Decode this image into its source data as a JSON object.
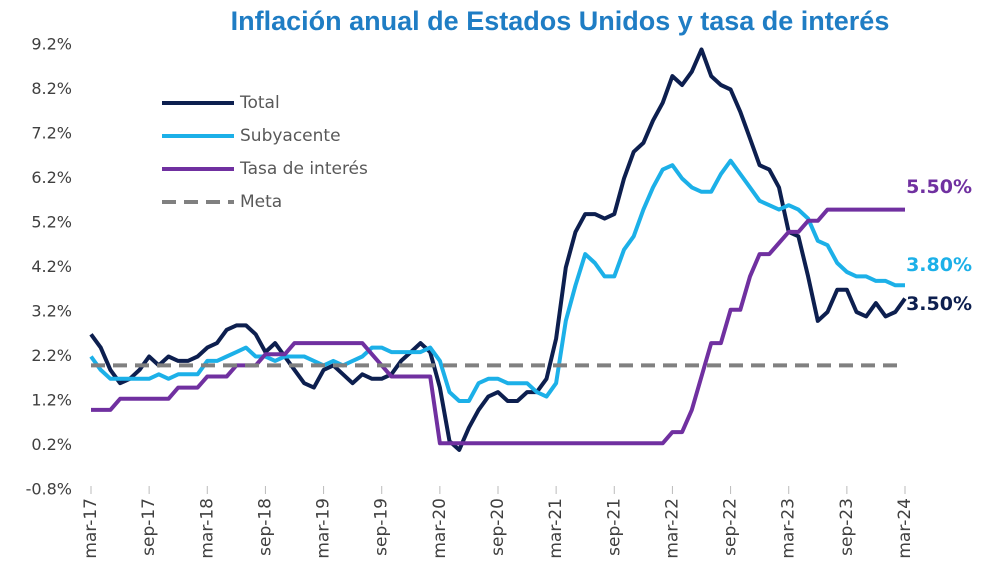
{
  "chart_data": {
    "type": "line",
    "title": "Inflación anual de Estados Unidos y tasa de interés",
    "categories": [
      "mar-17",
      null,
      null,
      null,
      null,
      null,
      "sep-17",
      null,
      null,
      null,
      null,
      null,
      "mar-18",
      null,
      null,
      null,
      null,
      null,
      "sep-18",
      null,
      null,
      null,
      null,
      null,
      "mar-19",
      null,
      null,
      null,
      null,
      null,
      "sep-19",
      null,
      null,
      null,
      null,
      null,
      "mar-20",
      null,
      null,
      null,
      null,
      null,
      "sep-20",
      null,
      null,
      null,
      null,
      null,
      "mar-21",
      null,
      null,
      null,
      null,
      null,
      "sep-21",
      null,
      null,
      null,
      null,
      null,
      "mar-22",
      null,
      null,
      null,
      null,
      null,
      "sep-22",
      null,
      null,
      null,
      null,
      null,
      "mar-23",
      null,
      null,
      null,
      null,
      null,
      "sep-23",
      null,
      null,
      null,
      null,
      null,
      "mar-24"
    ],
    "series": [
      {
        "name": "Total",
        "color": "#0d1f4f",
        "end_label": "3.50%",
        "values": [
          2.7,
          2.4,
          1.9,
          1.6,
          1.7,
          1.9,
          2.2,
          2.0,
          2.2,
          2.1,
          2.1,
          2.2,
          2.4,
          2.5,
          2.8,
          2.9,
          2.9,
          2.7,
          2.3,
          2.5,
          2.2,
          1.9,
          1.6,
          1.5,
          1.9,
          2.0,
          1.8,
          1.6,
          1.8,
          1.7,
          1.7,
          1.8,
          2.1,
          2.3,
          2.5,
          2.3,
          1.5,
          0.3,
          0.1,
          0.6,
          1.0,
          1.3,
          1.4,
          1.2,
          1.2,
          1.4,
          1.4,
          1.7,
          2.6,
          4.2,
          5.0,
          5.4,
          5.4,
          5.3,
          5.4,
          6.2,
          6.8,
          7.0,
          7.5,
          7.9,
          8.5,
          8.3,
          8.6,
          9.1,
          8.5,
          8.3,
          8.2,
          7.7,
          7.1,
          6.5,
          6.4,
          6.0,
          5.0,
          4.9,
          4.0,
          3.0,
          3.2,
          3.7,
          3.7,
          3.2,
          3.1,
          3.4,
          3.1,
          3.2,
          3.5
        ]
      },
      {
        "name": "Subyacente",
        "color": "#1cb0e8",
        "end_label": "3.80%",
        "values": [
          2.2,
          1.9,
          1.7,
          1.7,
          1.7,
          1.7,
          1.7,
          1.8,
          1.7,
          1.8,
          1.8,
          1.8,
          2.1,
          2.1,
          2.2,
          2.3,
          2.4,
          2.2,
          2.2,
          2.1,
          2.2,
          2.2,
          2.2,
          2.1,
          2.0,
          2.1,
          2.0,
          2.1,
          2.2,
          2.4,
          2.4,
          2.3,
          2.3,
          2.3,
          2.3,
          2.4,
          2.1,
          1.4,
          1.2,
          1.2,
          1.6,
          1.7,
          1.7,
          1.6,
          1.6,
          1.6,
          1.4,
          1.3,
          1.6,
          3.0,
          3.8,
          4.5,
          4.3,
          4.0,
          4.0,
          4.6,
          4.9,
          5.5,
          6.0,
          6.4,
          6.5,
          6.2,
          6.0,
          5.9,
          5.9,
          6.3,
          6.6,
          6.3,
          6.0,
          5.7,
          5.6,
          5.5,
          5.6,
          5.5,
          5.3,
          4.8,
          4.7,
          4.3,
          4.1,
          4.0,
          4.0,
          3.9,
          3.9,
          3.8,
          3.8
        ]
      },
      {
        "name": "Tasa de interés",
        "color": "#7030a0",
        "end_label": "5.50%",
        "values": [
          1.0,
          1.0,
          1.0,
          1.25,
          1.25,
          1.25,
          1.25,
          1.25,
          1.25,
          1.5,
          1.5,
          1.5,
          1.75,
          1.75,
          1.75,
          2.0,
          2.0,
          2.0,
          2.25,
          2.25,
          2.25,
          2.5,
          2.5,
          2.5,
          2.5,
          2.5,
          2.5,
          2.5,
          2.5,
          2.25,
          2.0,
          1.75,
          1.75,
          1.75,
          1.75,
          1.75,
          0.25,
          0.25,
          0.25,
          0.25,
          0.25,
          0.25,
          0.25,
          0.25,
          0.25,
          0.25,
          0.25,
          0.25,
          0.25,
          0.25,
          0.25,
          0.25,
          0.25,
          0.25,
          0.25,
          0.25,
          0.25,
          0.25,
          0.25,
          0.25,
          0.5,
          0.5,
          1.0,
          1.75,
          2.5,
          2.5,
          3.25,
          3.25,
          4.0,
          4.5,
          4.5,
          4.75,
          5.0,
          5.0,
          5.25,
          5.25,
          5.5,
          5.5,
          5.5,
          5.5,
          5.5,
          5.5,
          5.5,
          5.5,
          5.5
        ]
      },
      {
        "name": "Meta",
        "color": "#808080",
        "dashed": true,
        "values": [
          2,
          2,
          2,
          2,
          2,
          2,
          2,
          2,
          2,
          2,
          2,
          2,
          2,
          2,
          2,
          2,
          2,
          2,
          2,
          2,
          2,
          2,
          2,
          2,
          2,
          2,
          2,
          2,
          2,
          2,
          2,
          2,
          2,
          2,
          2,
          2,
          2,
          2,
          2,
          2,
          2,
          2,
          2,
          2,
          2,
          2,
          2,
          2,
          2,
          2,
          2,
          2,
          2,
          2,
          2,
          2,
          2,
          2,
          2,
          2,
          2,
          2,
          2,
          2,
          2,
          2,
          2,
          2,
          2,
          2,
          2,
          2,
          2,
          2,
          2,
          2,
          2,
          2,
          2,
          2,
          2,
          2,
          2,
          2,
          2
        ]
      }
    ],
    "ylim": [
      -0.8,
      9.2
    ],
    "yticks": [
      {
        "value": -0.8,
        "label": "-0.8%"
      },
      {
        "value": 0.2,
        "label": "0.2%"
      },
      {
        "value": 1.2,
        "label": "1.2%"
      },
      {
        "value": 2.2,
        "label": "2.2%"
      },
      {
        "value": 3.2,
        "label": "3.2%"
      },
      {
        "value": 4.2,
        "label": "4.2%"
      },
      {
        "value": 5.2,
        "label": "5.2%"
      },
      {
        "value": 6.2,
        "label": "6.2%"
      },
      {
        "value": 7.2,
        "label": "7.2%"
      },
      {
        "value": 8.2,
        "label": "8.2%"
      },
      {
        "value": 9.2,
        "label": "9.2%"
      }
    ],
    "grid": false,
    "legend": "upper left"
  }
}
